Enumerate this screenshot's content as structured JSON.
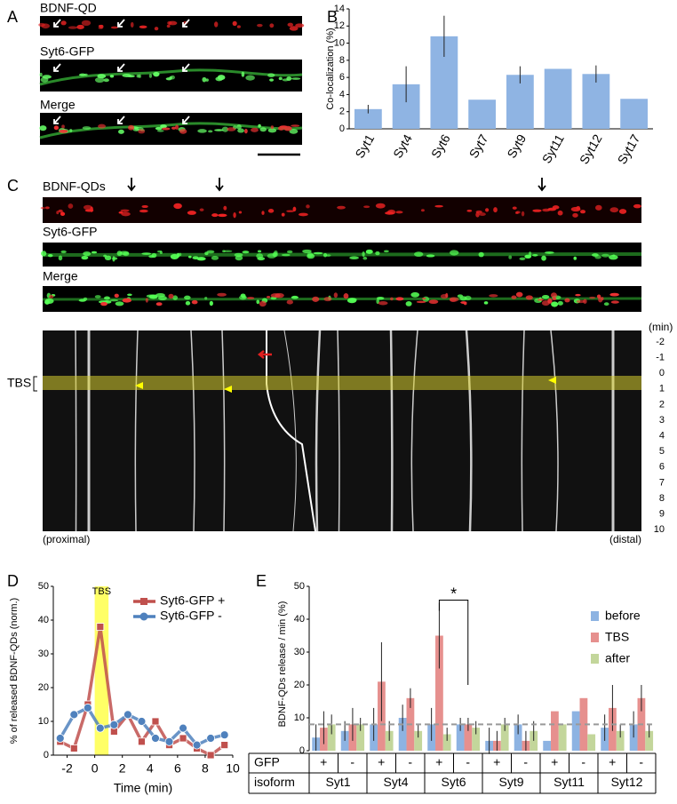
{
  "panels": [
    "A",
    "B",
    "C",
    "D",
    "E"
  ],
  "panel_a": {
    "labels": [
      "BDNF-QD",
      "Syt6-GFP",
      "Merge"
    ]
  },
  "panel_c": {
    "labels": [
      "BDNF-QDs",
      "Syt6-GFP",
      "Merge"
    ]
  },
  "kymograph": {
    "time_unit": "(min)",
    "time_labels": [
      -2,
      -1,
      0,
      1,
      2,
      3,
      4,
      5,
      6,
      7,
      8,
      9,
      10
    ],
    "event": "TBS",
    "left_label": "(proximal)",
    "right_label": "(distal)"
  },
  "chart_data": [
    {
      "type": "bar",
      "y_label": "Co-localization (%)",
      "categories": [
        "Syt1",
        "Syt4",
        "Syt6",
        "Syt7",
        "Syt9",
        "Syt11",
        "Syt12",
        "Syt17"
      ],
      "values": [
        2.3,
        5.2,
        10.8,
        3.4,
        6.3,
        7.0,
        6.4,
        3.5
      ],
      "errors": [
        0.5,
        2.1,
        2.4,
        null,
        1.0,
        null,
        1.0,
        null
      ],
      "color": "#8fb4e3",
      "ylim": [
        0,
        14
      ],
      "yticks": [
        0,
        2,
        4,
        6,
        8,
        10,
        12,
        14
      ]
    },
    {
      "type": "line",
      "x_label": "Time (min)",
      "y_label": "% of released BDNF-QDs (norm.)",
      "x": [
        -2.5,
        -1.5,
        -0.5,
        0.4,
        1.4,
        2.4,
        3.4,
        4.4,
        5.4,
        6.4,
        7.4,
        8.4,
        9.4
      ],
      "series": [
        {
          "name": "Syt6-GFP +",
          "color": "#c0504d",
          "marker": "square",
          "values": [
            4,
            2,
            15,
            38,
            7,
            12,
            4,
            10,
            3,
            5,
            2,
            0,
            3
          ]
        },
        {
          "name": "Syt6-GFP -",
          "color": "#4f81bd",
          "marker": "circle",
          "values": [
            5,
            12,
            14,
            8,
            9,
            12,
            10,
            5,
            4,
            8,
            3,
            5,
            6
          ]
        }
      ],
      "highlight": {
        "from": 0,
        "to": 1,
        "label": "TBS",
        "color": "#ffff66"
      },
      "legend": "upper right",
      "xlim": [
        -3,
        10
      ],
      "xticks": [
        -2,
        0,
        2,
        4,
        6,
        8,
        10
      ],
      "ylim": [
        0,
        50
      ],
      "yticks": [
        0,
        10,
        20,
        30,
        40,
        50
      ]
    },
    {
      "type": "grouped_bar",
      "y_label": "BDNF-QDs release / min (%)",
      "row_labels": [
        "GFP",
        "isoform"
      ],
      "categories": [
        "+",
        "-",
        "+",
        "-",
        "+",
        "-",
        "+",
        "-",
        "+",
        "-",
        "+",
        "-"
      ],
      "isoforms": [
        "Syt1",
        "Syt4",
        "Syt6",
        "Syt9",
        "Syt11",
        "Syt12"
      ],
      "series": [
        {
          "name": "before",
          "color": "#8db3e2",
          "values": [
            4,
            6,
            8,
            10,
            8,
            8,
            3,
            8,
            3,
            12,
            7,
            8
          ],
          "errors": [
            4,
            3,
            5,
            4,
            5,
            2,
            4,
            3,
            null,
            null,
            4,
            4
          ]
        },
        {
          "name": "TBS",
          "color": "#e6908e",
          "values": [
            7,
            8,
            21,
            16,
            35,
            8,
            3,
            3,
            12,
            16,
            13,
            16
          ],
          "errors": [
            5,
            5,
            12,
            3,
            10,
            2,
            3,
            3,
            null,
            null,
            7,
            4
          ]
        },
        {
          "name": "after",
          "color": "#c3d69b",
          "values": [
            8,
            8,
            6,
            6,
            5,
            7,
            8,
            6,
            8,
            5,
            6,
            6
          ],
          "errors": [
            3,
            2,
            3,
            2,
            2,
            2,
            2,
            3,
            null,
            null,
            2,
            2
          ]
        }
      ],
      "reference_line": 8,
      "annotation": "*",
      "legend": "upper right",
      "ylim": [
        0,
        50
      ],
      "yticks": [
        0,
        10,
        20,
        30,
        40,
        50
      ]
    }
  ]
}
